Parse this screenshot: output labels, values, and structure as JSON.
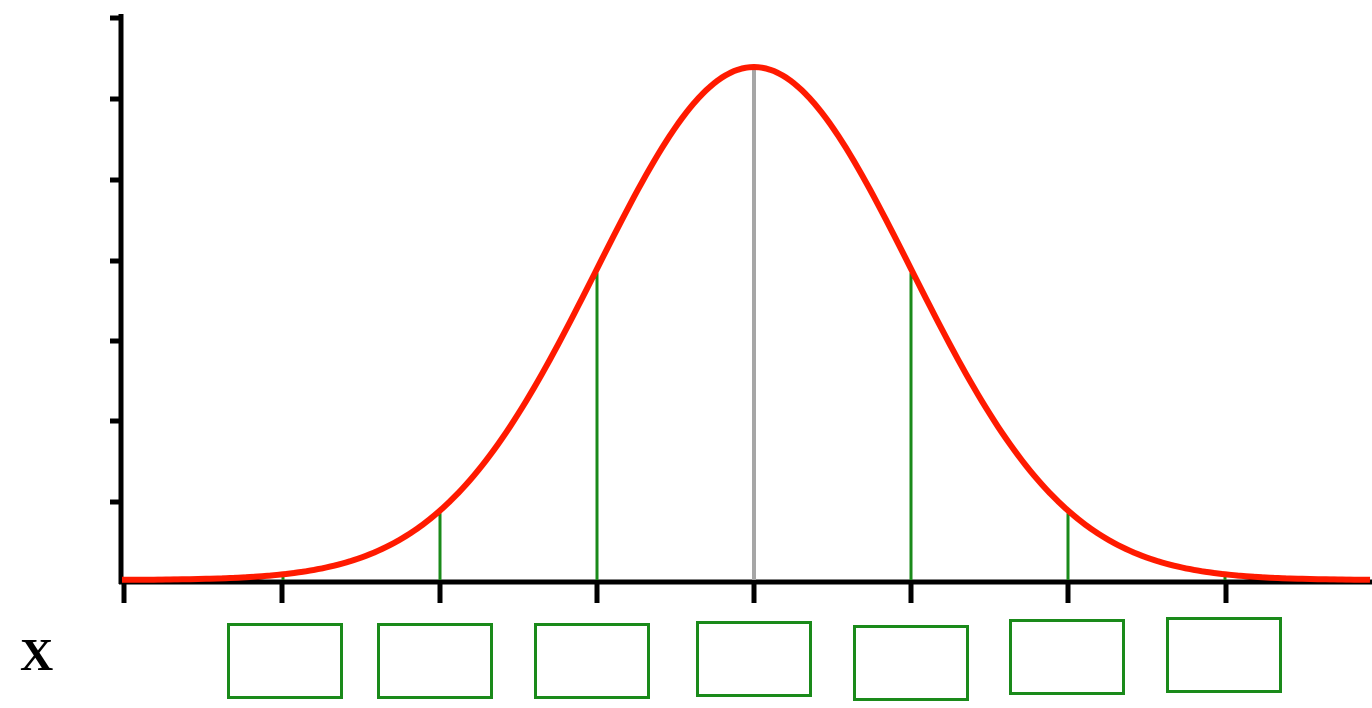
{
  "x_axis_label": "X",
  "curve": {
    "type": "normal-distribution",
    "mean_marker": "center",
    "std_marker_count_each_side": 3
  },
  "answer_boxes": [
    "",
    "",
    "",
    "",
    "",
    "",
    ""
  ],
  "colors": {
    "curve": "#ff1a00",
    "markers": "#1a8a1a",
    "mean_line": "#a6a6a6",
    "axes": "#000000",
    "box_border": "#1a8a1a"
  }
}
